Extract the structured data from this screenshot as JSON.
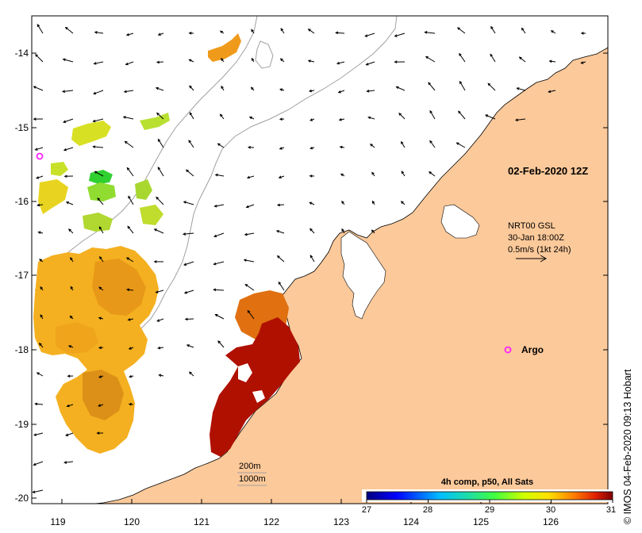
{
  "map": {
    "timestamp_label": "02-Feb-2020 12Z",
    "current_legend": {
      "line1": "NRT00 GSL",
      "line2": "30-Jan 18:00Z",
      "line3": "0.5m/s (1kt 24h)"
    },
    "argo_label": "Argo",
    "depth_legend": {
      "contour1": "200m",
      "contour2": "1000m"
    },
    "colorbar": {
      "title": "4h comp, p50, All Sats",
      "ticks": [
        "27",
        "28",
        "29",
        "30",
        "31"
      ],
      "min": 27,
      "max": 31
    },
    "lon_ticks": [
      "119",
      "120",
      "121",
      "122",
      "123",
      "124",
      "125",
      "126"
    ],
    "lat_ticks": [
      "-14",
      "-15",
      "-16",
      "-17",
      "-18",
      "-19",
      "-20"
    ],
    "credit": "© IMOS 04-Feb-2020 09:13 Hobart",
    "colors": {
      "land": "#fcc99a",
      "ocean": "#ffffff",
      "argo_marker": "#ff22ff",
      "contour": "#a0a0a0"
    }
  }
}
